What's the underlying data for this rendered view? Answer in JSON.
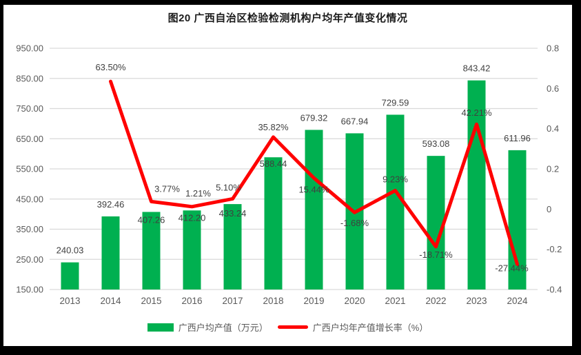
{
  "chart_data": {
    "type": "combo",
    "title": "图20 广西自治区检验检测机构户均年产值变化情况",
    "categories": [
      "2013",
      "2014",
      "2015",
      "2016",
      "2017",
      "2018",
      "2019",
      "2020",
      "2021",
      "2022",
      "2023",
      "2024"
    ],
    "series": [
      {
        "name": "广西户均产值（万元）",
        "type": "bar",
        "axis": "left",
        "values": [
          240.03,
          392.46,
          407.26,
          412.2,
          433.24,
          588.44,
          679.32,
          667.94,
          729.59,
          593.08,
          843.42,
          611.96
        ],
        "labels": [
          "240.03",
          "392.46",
          "407.26",
          "412.20",
          "433.24",
          "588.44",
          "679.32",
          "667.94",
          "729.59",
          "593.08",
          "843.42",
          "611.96"
        ]
      },
      {
        "name": "广西户均年产值增长率（%）",
        "type": "line",
        "axis": "right",
        "values": [
          null,
          63.5,
          3.77,
          1.21,
          5.1,
          35.82,
          15.44,
          -1.68,
          9.23,
          -18.71,
          42.21,
          -27.44
        ],
        "labels": [
          null,
          "63.50%",
          "3.77%",
          "1.21%",
          "5.10%",
          "35.82%",
          "15.44%",
          "-1.68%",
          "9.23%",
          "-18.71%",
          "42.21%",
          "-27.44%"
        ]
      }
    ],
    "axes": {
      "left": {
        "min": 150,
        "max": 950,
        "ticks": [
          "950.00",
          "850.00",
          "750.00",
          "650.00",
          "550.00",
          "450.00",
          "350.00",
          "250.00",
          "150.00"
        ]
      },
      "right": {
        "min": -0.4,
        "max": 0.8,
        "ticks": [
          "0.8",
          "0.6",
          "0.4",
          "0.2",
          "0",
          "-0.2",
          "-0.4"
        ]
      }
    },
    "grid": true,
    "legend_position": "bottom",
    "colors": {
      "bar": "#00B050",
      "line": "#FF0000",
      "gridline": "#D9D9D9",
      "axis_label": "#595959",
      "data_label": "#404040",
      "title": "#1a1a1a",
      "background": "#FFFFFF",
      "frame": "#000000"
    },
    "layout_hints": {
      "bar_label_dy": [
        -13,
        -13,
        16,
        15,
        18,
        14,
        -13,
        -13,
        -13,
        -13,
        -13,
        -13
      ],
      "line_label_dx": [
        0,
        0,
        23,
        9,
        -6,
        0,
        0,
        0,
        0,
        0,
        0,
        -8
      ],
      "line_label_dy": [
        0,
        -16,
        -14,
        -15,
        -12,
        -10,
        21,
        20,
        -12,
        16,
        -12,
        10
      ]
    }
  }
}
